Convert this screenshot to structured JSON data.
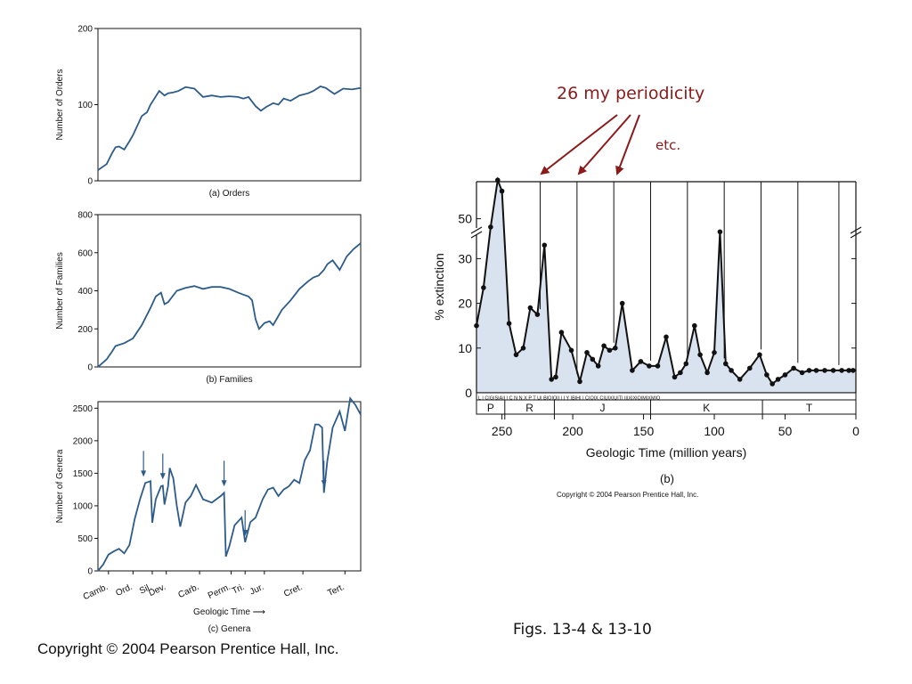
{
  "colors": {
    "series": "#2d5b8a",
    "annotation": "#8b1a1a",
    "fill": "#d9e2ef",
    "ink": "#111111"
  },
  "annotations": {
    "periodicity": "26 my periodicity",
    "etc": "etc.",
    "figs": "Figs. 13-4 & 13-10",
    "copyright_main": "Copyright © 2004 Pearson Prentice Hall, Inc.",
    "copyright_small": "Copyright © 2004 Pearson Prentice Hall, Inc."
  },
  "chart_data": [
    {
      "type": "line",
      "caption": "(a) Orders",
      "ylabel": "Number of Orders",
      "xlabel": "",
      "ylim": [
        0,
        200
      ],
      "yticks": [
        0,
        100,
        200
      ],
      "x": [
        0,
        0.5,
        0.8,
        1,
        1.2,
        1.5,
        1.8,
        2,
        2.5,
        2.8,
        3,
        3.5,
        3.8,
        4,
        4.3,
        4.6,
        5,
        5.5,
        6,
        6.5,
        7,
        7.5,
        8,
        8.3,
        8.6,
        9,
        9.3,
        9.6,
        10,
        10.3,
        10.6,
        11,
        11.5,
        12,
        12.3,
        12.7,
        13,
        13.5,
        14,
        14.5,
        15
      ],
      "y": [
        14,
        22,
        36,
        44,
        45,
        41,
        52,
        60,
        85,
        90,
        100,
        118,
        112,
        115,
        116,
        118,
        123,
        121,
        110,
        112,
        110,
        111,
        110,
        108,
        110,
        98,
        92,
        97,
        102,
        100,
        108,
        105,
        112,
        115,
        118,
        124,
        122,
        114,
        121,
        120,
        122
      ]
    },
    {
      "type": "line",
      "caption": "(b) Families",
      "ylabel": "Number of Families",
      "xlabel": "",
      "ylim": [
        0,
        800
      ],
      "yticks": [
        0,
        200,
        400,
        600,
        800
      ],
      "x": [
        0,
        0.5,
        0.8,
        1,
        1.5,
        2,
        2.5,
        3,
        3.3,
        3.6,
        3.8,
        4,
        4.5,
        5,
        5.5,
        6,
        6.5,
        7,
        7.5,
        8,
        8.3,
        8.6,
        8.8,
        9,
        9.2,
        9.5,
        9.8,
        10,
        10.5,
        11,
        11.5,
        12,
        12.3,
        12.6,
        12.9,
        13.1,
        13.4,
        13.8,
        14.2,
        14.6,
        15
      ],
      "y": [
        0,
        40,
        80,
        110,
        125,
        150,
        220,
        310,
        370,
        390,
        330,
        340,
        400,
        415,
        425,
        410,
        420,
        420,
        410,
        390,
        380,
        370,
        350,
        250,
        200,
        230,
        240,
        220,
        300,
        350,
        410,
        450,
        470,
        480,
        510,
        540,
        560,
        510,
        580,
        620,
        650
      ]
    },
    {
      "type": "line",
      "caption": "(c) Genera",
      "ylabel": "Number of Genera",
      "xlabel": "Geologic Time ⟶",
      "ylim": [
        0,
        2600
      ],
      "yticks": [
        0,
        500,
        1000,
        1500,
        2000,
        2500
      ],
      "periods": [
        "Camb.",
        "Ord.",
        "Sil.",
        "Dev.",
        "Carb.",
        "Perm.",
        "Tri.",
        "Jur.",
        "Cret.",
        "Tert."
      ],
      "period_positions": [
        0.6,
        2.0,
        3.1,
        3.9,
        5.8,
        7.6,
        8.4,
        9.5,
        11.7,
        14.1
      ],
      "extinction_arrows": [
        2.6,
        3.7,
        7.2,
        8.4,
        12.9
      ],
      "x": [
        0,
        0.3,
        0.6,
        0.9,
        1.2,
        1.5,
        1.8,
        2.1,
        2.4,
        2.7,
        3.0,
        3.1,
        3.3,
        3.6,
        3.7,
        3.8,
        4.0,
        4.1,
        4.2,
        4.3,
        4.5,
        4.7,
        5.0,
        5.3,
        5.6,
        6.0,
        6.5,
        7.0,
        7.2,
        7.3,
        7.5,
        7.8,
        8.2,
        8.4,
        8.7,
        9.0,
        9.4,
        9.7,
        10.0,
        10.3,
        10.6,
        10.9,
        11.2,
        11.5,
        11.8,
        12.1,
        12.4,
        12.6,
        12.8,
        12.9,
        13.1,
        13.4,
        13.8,
        14.1,
        14.4,
        14.7,
        15.0
      ],
      "y": [
        0,
        100,
        250,
        300,
        340,
        270,
        400,
        800,
        1100,
        1350,
        1380,
        740,
        1100,
        1300,
        1310,
        1020,
        1300,
        1580,
        1500,
        1420,
        1000,
        680,
        1050,
        1150,
        1320,
        1100,
        1050,
        1150,
        1200,
        220,
        380,
        700,
        820,
        440,
        750,
        820,
        1100,
        1250,
        1280,
        1150,
        1250,
        1300,
        1400,
        1350,
        1700,
        1850,
        2250,
        2250,
        2200,
        1200,
        1700,
        2200,
        2450,
        2150,
        2650,
        2550,
        2400
      ]
    },
    {
      "type": "line",
      "caption": "(b)",
      "ylabel": "% extinction",
      "xlabel": "Geologic Time (million years)",
      "xlim": [
        268,
        0
      ],
      "xticks": [
        250,
        200,
        150,
        100,
        50,
        0
      ],
      "yticks_lower": [
        0,
        10,
        20,
        30
      ],
      "ytick_upper": 50,
      "periods": [
        "P",
        "R",
        "J",
        "K",
        "T"
      ],
      "subperiods": "L | C|G|S|A|I | C N N X P T U| B|O|O|I | I Y |B|H| | C|O|X C|U|X|U|T| |I|X|X|O|M|XM|O",
      "periodicity_lines": [
        223,
        197,
        171,
        145,
        119,
        93,
        67,
        41,
        12
      ],
      "x": [
        268,
        263,
        258,
        253,
        250,
        245,
        240,
        235,
        230,
        225,
        220,
        215,
        212,
        208,
        201,
        195,
        190,
        186,
        182,
        178,
        174,
        170,
        165,
        158,
        152,
        146,
        140,
        134,
        128,
        124,
        120,
        114,
        110,
        105,
        100,
        96,
        92,
        88,
        82,
        75,
        68,
        63,
        59,
        55,
        50,
        44,
        38,
        33,
        28,
        22,
        16,
        10,
        5,
        2,
        0
      ],
      "y": [
        15,
        23.5,
        48.5,
        57,
        55,
        15.5,
        8.5,
        10,
        19,
        17.5,
        33,
        3,
        3.5,
        13.5,
        9.5,
        2.5,
        9,
        7.5,
        6,
        10.5,
        9.5,
        10,
        20,
        5,
        7,
        6,
        6,
        12.5,
        3.5,
        4.5,
        6.5,
        15,
        8.5,
        4.5,
        9,
        36,
        6.5,
        5,
        3,
        5.5,
        8.5,
        4,
        2,
        3,
        4,
        5.5,
        4.5,
        5,
        5,
        5,
        5,
        5,
        5,
        5,
        5
      ]
    }
  ]
}
